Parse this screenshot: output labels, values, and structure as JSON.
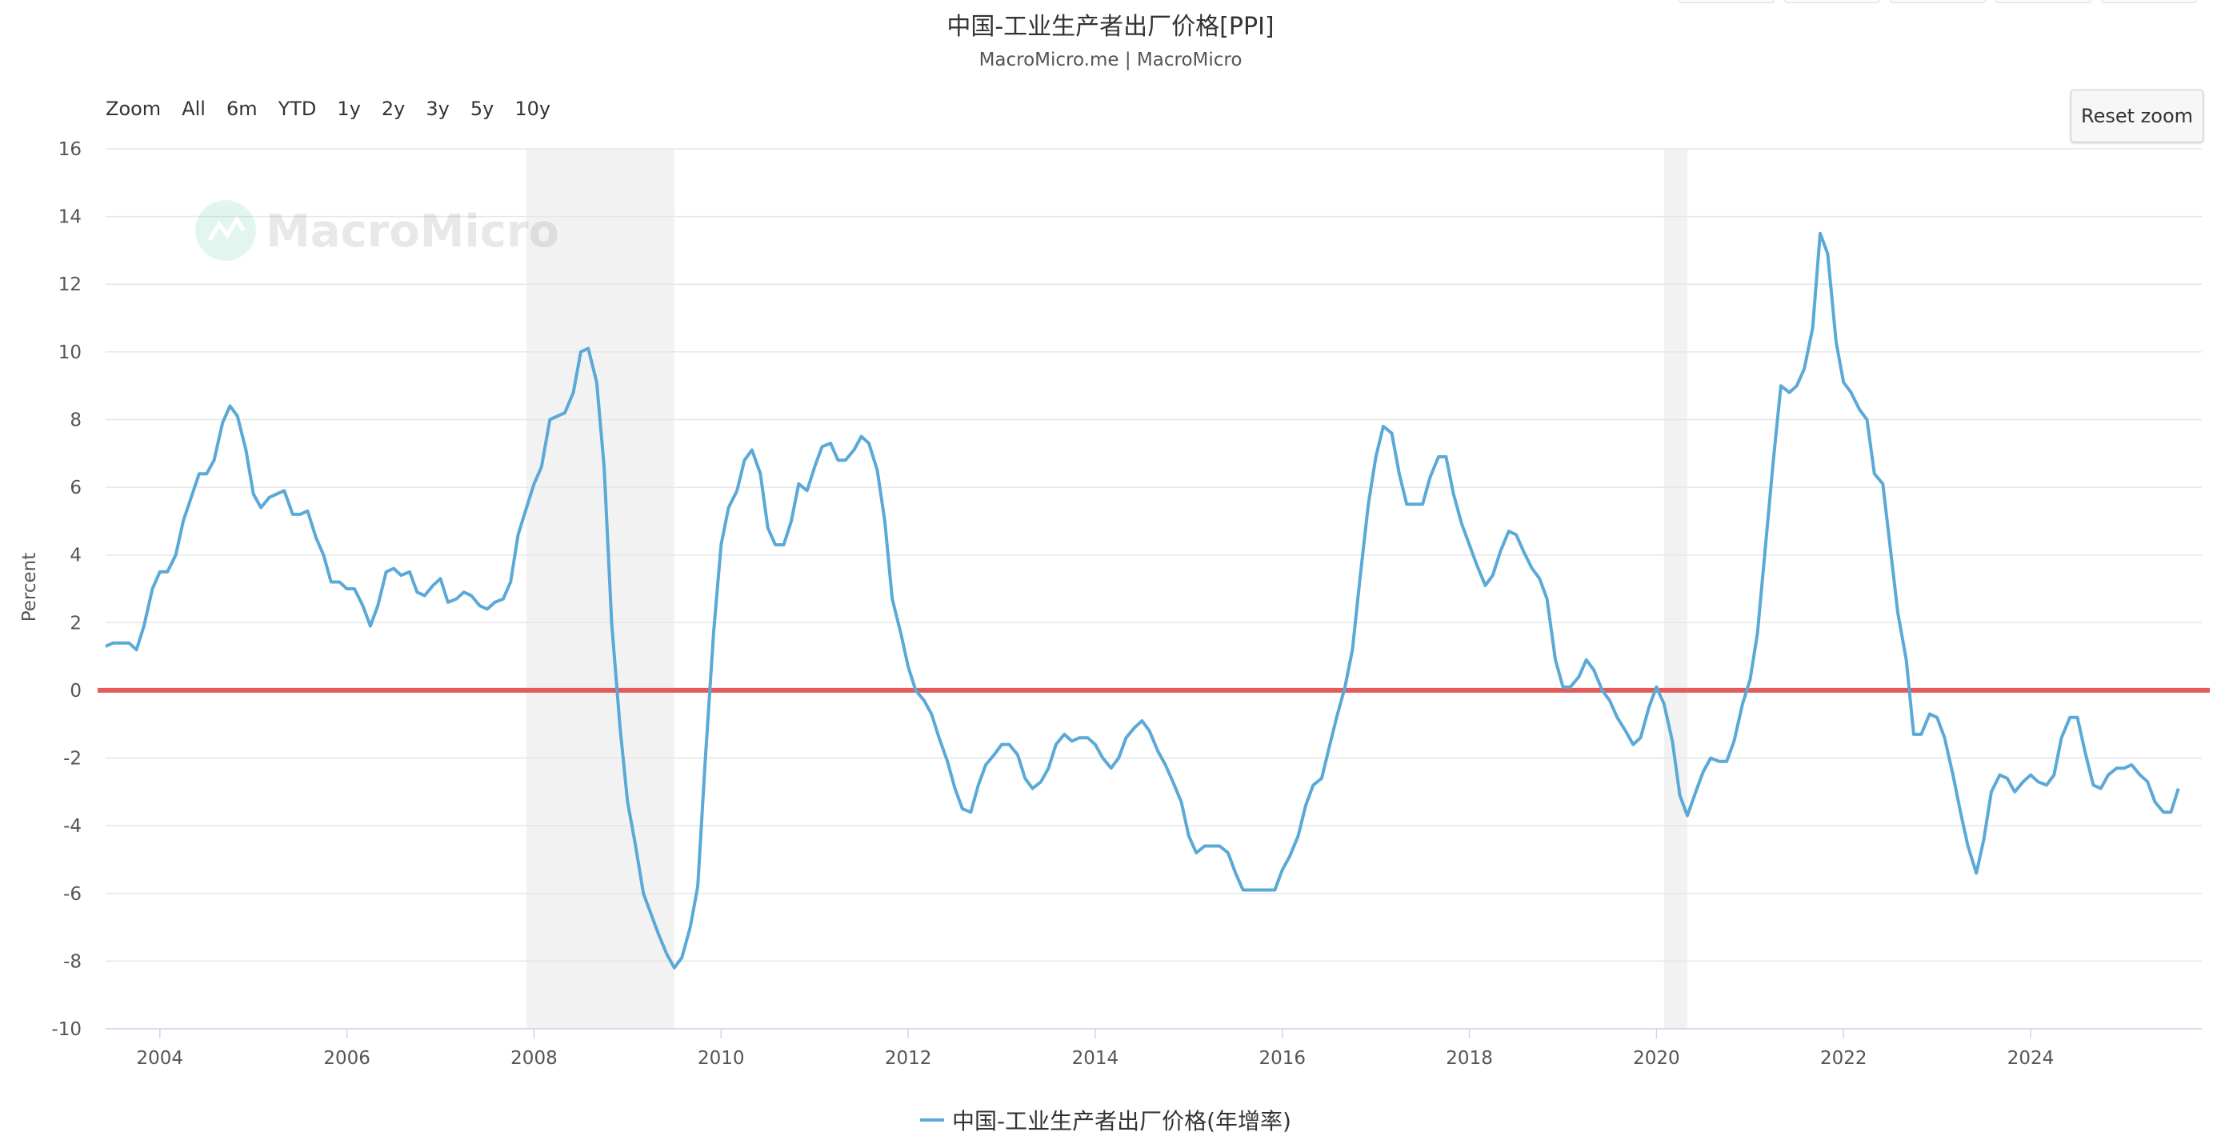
{
  "chart_data": {
    "type": "line",
    "title": "中国-工业生产者出厂价格[PPI]",
    "subtitle": "MacroMicro.me | MacroMicro",
    "ylabel": "Percent",
    "xlabel": "",
    "ylim": [
      -10,
      16
    ],
    "yticks": [
      -10,
      -8,
      -6,
      -4,
      -2,
      0,
      2,
      4,
      6,
      8,
      10,
      12,
      14,
      16
    ],
    "xlim": [
      2003.42,
      2025.83
    ],
    "xticks": [
      2004,
      2006,
      2008,
      2010,
      2012,
      2014,
      2016,
      2018,
      2020,
      2022,
      2024
    ],
    "grid": true,
    "legend_position": "bottom",
    "watermark": "MacroMicro",
    "colors": {
      "series": "#5aa9d6",
      "zero_line": "#e45b5b",
      "shade": "#f2f2f2",
      "grid": "#e6e6e6"
    },
    "reference_line": {
      "y": 0
    },
    "shaded_periods": [
      [
        2007.92,
        2009.5
      ],
      [
        2020.08,
        2020.33
      ]
    ],
    "series": [
      {
        "name": "中国-工业生产者出厂价格(年增率)",
        "points": [
          [
            2003.42,
            1.3
          ],
          [
            2003.5,
            1.4
          ],
          [
            2003.67,
            1.4
          ],
          [
            2003.75,
            1.2
          ],
          [
            2003.83,
            1.9
          ],
          [
            2003.92,
            3.0
          ],
          [
            2004.0,
            3.5
          ],
          [
            2004.08,
            3.5
          ],
          [
            2004.17,
            4.0
          ],
          [
            2004.25,
            5.0
          ],
          [
            2004.42,
            6.4
          ],
          [
            2004.5,
            6.4
          ],
          [
            2004.58,
            6.8
          ],
          [
            2004.67,
            7.9
          ],
          [
            2004.75,
            8.4
          ],
          [
            2004.83,
            8.1
          ],
          [
            2004.92,
            7.1
          ],
          [
            2005.0,
            5.8
          ],
          [
            2005.08,
            5.4
          ],
          [
            2005.17,
            5.7
          ],
          [
            2005.25,
            5.8
          ],
          [
            2005.33,
            5.9
          ],
          [
            2005.42,
            5.2
          ],
          [
            2005.5,
            5.2
          ],
          [
            2005.58,
            5.3
          ],
          [
            2005.67,
            4.5
          ],
          [
            2005.75,
            4.0
          ],
          [
            2005.83,
            3.2
          ],
          [
            2005.92,
            3.2
          ],
          [
            2006.0,
            3.0
          ],
          [
            2006.08,
            3.0
          ],
          [
            2006.17,
            2.5
          ],
          [
            2006.25,
            1.9
          ],
          [
            2006.33,
            2.5
          ],
          [
            2006.42,
            3.5
          ],
          [
            2006.5,
            3.6
          ],
          [
            2006.58,
            3.4
          ],
          [
            2006.67,
            3.5
          ],
          [
            2006.75,
            2.9
          ],
          [
            2006.83,
            2.8
          ],
          [
            2006.92,
            3.1
          ],
          [
            2007.0,
            3.3
          ],
          [
            2007.08,
            2.6
          ],
          [
            2007.17,
            2.7
          ],
          [
            2007.25,
            2.9
          ],
          [
            2007.33,
            2.8
          ],
          [
            2007.42,
            2.5
          ],
          [
            2007.5,
            2.4
          ],
          [
            2007.58,
            2.6
          ],
          [
            2007.67,
            2.7
          ],
          [
            2007.75,
            3.2
          ],
          [
            2007.83,
            4.6
          ],
          [
            2007.92,
            5.4
          ],
          [
            2008.0,
            6.1
          ],
          [
            2008.08,
            6.6
          ],
          [
            2008.17,
            8.0
          ],
          [
            2008.25,
            8.1
          ],
          [
            2008.33,
            8.2
          ],
          [
            2008.42,
            8.8
          ],
          [
            2008.5,
            10.0
          ],
          [
            2008.58,
            10.1
          ],
          [
            2008.67,
            9.1
          ],
          [
            2008.75,
            6.6
          ],
          [
            2008.83,
            2.0
          ],
          [
            2008.92,
            -1.1
          ],
          [
            2009.0,
            -3.3
          ],
          [
            2009.08,
            -4.5
          ],
          [
            2009.17,
            -6.0
          ],
          [
            2009.25,
            -6.6
          ],
          [
            2009.33,
            -7.2
          ],
          [
            2009.42,
            -7.8
          ],
          [
            2009.5,
            -8.2
          ],
          [
            2009.58,
            -7.9
          ],
          [
            2009.67,
            -7.0
          ],
          [
            2009.75,
            -5.8
          ],
          [
            2009.83,
            -2.1
          ],
          [
            2009.92,
            1.7
          ],
          [
            2010.0,
            4.3
          ],
          [
            2010.08,
            5.4
          ],
          [
            2010.17,
            5.9
          ],
          [
            2010.25,
            6.8
          ],
          [
            2010.33,
            7.1
          ],
          [
            2010.42,
            6.4
          ],
          [
            2010.5,
            4.8
          ],
          [
            2010.58,
            4.3
          ],
          [
            2010.67,
            4.3
          ],
          [
            2010.75,
            5.0
          ],
          [
            2010.83,
            6.1
          ],
          [
            2010.92,
            5.9
          ],
          [
            2011.0,
            6.6
          ],
          [
            2011.08,
            7.2
          ],
          [
            2011.17,
            7.3
          ],
          [
            2011.25,
            6.8
          ],
          [
            2011.33,
            6.8
          ],
          [
            2011.42,
            7.1
          ],
          [
            2011.5,
            7.5
          ],
          [
            2011.58,
            7.3
          ],
          [
            2011.67,
            6.5
          ],
          [
            2011.75,
            5.0
          ],
          [
            2011.83,
            2.7
          ],
          [
            2011.92,
            1.7
          ],
          [
            2012.0,
            0.7
          ],
          [
            2012.08,
            0.0
          ],
          [
            2012.17,
            -0.3
          ],
          [
            2012.25,
            -0.7
          ],
          [
            2012.33,
            -1.4
          ],
          [
            2012.42,
            -2.1
          ],
          [
            2012.5,
            -2.9
          ],
          [
            2012.58,
            -3.5
          ],
          [
            2012.67,
            -3.6
          ],
          [
            2012.75,
            -2.8
          ],
          [
            2012.83,
            -2.2
          ],
          [
            2012.92,
            -1.9
          ],
          [
            2013.0,
            -1.6
          ],
          [
            2013.08,
            -1.6
          ],
          [
            2013.17,
            -1.9
          ],
          [
            2013.25,
            -2.6
          ],
          [
            2013.33,
            -2.9
          ],
          [
            2013.42,
            -2.7
          ],
          [
            2013.5,
            -2.3
          ],
          [
            2013.58,
            -1.6
          ],
          [
            2013.67,
            -1.3
          ],
          [
            2013.75,
            -1.5
          ],
          [
            2013.83,
            -1.4
          ],
          [
            2013.92,
            -1.4
          ],
          [
            2014.0,
            -1.6
          ],
          [
            2014.08,
            -2.0
          ],
          [
            2014.17,
            -2.3
          ],
          [
            2014.25,
            -2.0
          ],
          [
            2014.33,
            -1.4
          ],
          [
            2014.42,
            -1.1
          ],
          [
            2014.5,
            -0.9
          ],
          [
            2014.58,
            -1.2
          ],
          [
            2014.67,
            -1.8
          ],
          [
            2014.75,
            -2.2
          ],
          [
            2014.83,
            -2.7
          ],
          [
            2014.92,
            -3.3
          ],
          [
            2015.0,
            -4.3
          ],
          [
            2015.08,
            -4.8
          ],
          [
            2015.17,
            -4.6
          ],
          [
            2015.25,
            -4.6
          ],
          [
            2015.33,
            -4.6
          ],
          [
            2015.42,
            -4.8
          ],
          [
            2015.5,
            -5.4
          ],
          [
            2015.58,
            -5.9
          ],
          [
            2015.67,
            -5.9
          ],
          [
            2015.75,
            -5.9
          ],
          [
            2015.83,
            -5.9
          ],
          [
            2015.92,
            -5.9
          ],
          [
            2016.0,
            -5.3
          ],
          [
            2016.08,
            -4.9
          ],
          [
            2016.17,
            -4.3
          ],
          [
            2016.25,
            -3.4
          ],
          [
            2016.33,
            -2.8
          ],
          [
            2016.42,
            -2.6
          ],
          [
            2016.5,
            -1.7
          ],
          [
            2016.58,
            -0.8
          ],
          [
            2016.67,
            0.1
          ],
          [
            2016.75,
            1.2
          ],
          [
            2016.83,
            3.3
          ],
          [
            2016.92,
            5.5
          ],
          [
            2017.0,
            6.9
          ],
          [
            2017.08,
            7.8
          ],
          [
            2017.17,
            7.6
          ],
          [
            2017.25,
            6.4
          ],
          [
            2017.33,
            5.5
          ],
          [
            2017.42,
            5.5
          ],
          [
            2017.5,
            5.5
          ],
          [
            2017.58,
            6.3
          ],
          [
            2017.67,
            6.9
          ],
          [
            2017.75,
            6.9
          ],
          [
            2017.83,
            5.8
          ],
          [
            2017.92,
            4.9
          ],
          [
            2018.0,
            4.3
          ],
          [
            2018.08,
            3.7
          ],
          [
            2018.17,
            3.1
          ],
          [
            2018.25,
            3.4
          ],
          [
            2018.33,
            4.1
          ],
          [
            2018.42,
            4.7
          ],
          [
            2018.5,
            4.6
          ],
          [
            2018.58,
            4.1
          ],
          [
            2018.67,
            3.6
          ],
          [
            2018.75,
            3.3
          ],
          [
            2018.83,
            2.7
          ],
          [
            2018.92,
            0.9
          ],
          [
            2019.0,
            0.1
          ],
          [
            2019.08,
            0.1
          ],
          [
            2019.17,
            0.4
          ],
          [
            2019.25,
            0.9
          ],
          [
            2019.33,
            0.6
          ],
          [
            2019.42,
            0.0
          ],
          [
            2019.5,
            -0.3
          ],
          [
            2019.58,
            -0.8
          ],
          [
            2019.67,
            -1.2
          ],
          [
            2019.75,
            -1.6
          ],
          [
            2019.83,
            -1.4
          ],
          [
            2019.92,
            -0.5
          ],
          [
            2020.0,
            0.1
          ],
          [
            2020.08,
            -0.4
          ],
          [
            2020.17,
            -1.5
          ],
          [
            2020.25,
            -3.1
          ],
          [
            2020.33,
            -3.7
          ],
          [
            2020.42,
            -3.0
          ],
          [
            2020.5,
            -2.4
          ],
          [
            2020.58,
            -2.0
          ],
          [
            2020.67,
            -2.1
          ],
          [
            2020.75,
            -2.1
          ],
          [
            2020.83,
            -1.5
          ],
          [
            2020.92,
            -0.4
          ],
          [
            2021.0,
            0.3
          ],
          [
            2021.08,
            1.7
          ],
          [
            2021.17,
            4.4
          ],
          [
            2021.25,
            6.8
          ],
          [
            2021.33,
            9.0
          ],
          [
            2021.42,
            8.8
          ],
          [
            2021.5,
            9.0
          ],
          [
            2021.58,
            9.5
          ],
          [
            2021.67,
            10.7
          ],
          [
            2021.75,
            13.5
          ],
          [
            2021.83,
            12.9
          ],
          [
            2021.92,
            10.3
          ],
          [
            2022.0,
            9.1
          ],
          [
            2022.08,
            8.8
          ],
          [
            2022.17,
            8.3
          ],
          [
            2022.25,
            8.0
          ],
          [
            2022.33,
            6.4
          ],
          [
            2022.42,
            6.1
          ],
          [
            2022.5,
            4.2
          ],
          [
            2022.58,
            2.3
          ],
          [
            2022.67,
            0.9
          ],
          [
            2022.75,
            -1.3
          ],
          [
            2022.83,
            -1.3
          ],
          [
            2022.92,
            -0.7
          ],
          [
            2023.0,
            -0.8
          ],
          [
            2023.08,
            -1.4
          ],
          [
            2023.17,
            -2.5
          ],
          [
            2023.25,
            -3.6
          ],
          [
            2023.33,
            -4.6
          ],
          [
            2023.42,
            -5.4
          ],
          [
            2023.5,
            -4.4
          ],
          [
            2023.58,
            -3.0
          ],
          [
            2023.67,
            -2.5
          ],
          [
            2023.75,
            -2.6
          ],
          [
            2023.83,
            -3.0
          ],
          [
            2023.92,
            -2.7
          ],
          [
            2024.0,
            -2.5
          ],
          [
            2024.08,
            -2.7
          ],
          [
            2024.17,
            -2.8
          ],
          [
            2024.25,
            -2.5
          ],
          [
            2024.33,
            -1.4
          ],
          [
            2024.42,
            -0.8
          ],
          [
            2024.5,
            -0.8
          ],
          [
            2024.58,
            -1.8
          ],
          [
            2024.67,
            -2.8
          ],
          [
            2024.75,
            -2.9
          ],
          [
            2024.83,
            -2.5
          ],
          [
            2024.92,
            -2.3
          ],
          [
            2025.0,
            -2.3
          ],
          [
            2025.08,
            -2.2
          ],
          [
            2025.17,
            -2.5
          ],
          [
            2025.25,
            -2.7
          ],
          [
            2025.33,
            -3.3
          ],
          [
            2025.42,
            -3.6
          ],
          [
            2025.5,
            -3.6
          ],
          [
            2025.58,
            -2.9
          ]
        ]
      }
    ]
  },
  "toolbar": {
    "zoom_label": "Zoom",
    "buttons": [
      "All",
      "6m",
      "YTD",
      "1y",
      "2y",
      "3y",
      "5y",
      "10y"
    ],
    "reset_label": "Reset zoom"
  }
}
